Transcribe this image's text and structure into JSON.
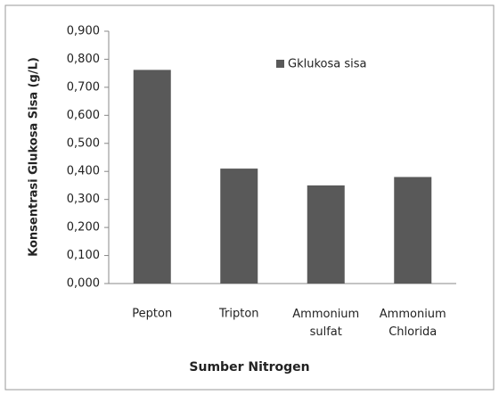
{
  "chart_data": {
    "type": "bar",
    "y_label": "Konsentrasi Glukosa Sisa (g/L)",
    "x_label": "Sumber Nitrogen",
    "categories": [
      "Pepton",
      "Tripton",
      "Ammonium sulfat",
      "Ammonium Chlorida"
    ],
    "series": [
      {
        "name": "Gklukosa sisa",
        "color": "#595959",
        "values": [
          0.762,
          0.41,
          0.35,
          0.38
        ]
      }
    ],
    "ylim": [
      0,
      0.9
    ],
    "yticks": [
      {
        "value": 0,
        "label": "0,000"
      },
      {
        "value": 0.1,
        "label": "0,100"
      },
      {
        "value": 0.2,
        "label": "0,200"
      },
      {
        "value": 0.3,
        "label": "0,300"
      },
      {
        "value": 0.4,
        "label": "0,400"
      },
      {
        "value": 0.5,
        "label": "0,500"
      },
      {
        "value": 0.6,
        "label": "0,600"
      },
      {
        "value": 0.7,
        "label": "0,700"
      },
      {
        "value": 0.8,
        "label": "0,800"
      },
      {
        "value": 0.9,
        "label": "0,900"
      }
    ],
    "grid": false,
    "legend": "top-right"
  }
}
